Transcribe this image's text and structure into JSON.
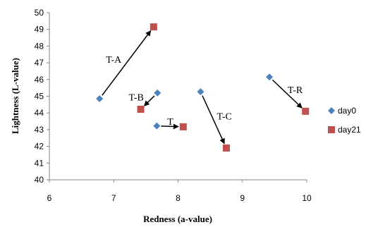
{
  "chart_data": {
    "type": "scatter",
    "xlabel": "Redness (a-value)",
    "ylabel": "Lightness (L-value)",
    "xlim": [
      6,
      10
    ],
    "ylim": [
      40,
      50
    ],
    "xticks": [
      6,
      7,
      8,
      9,
      10
    ],
    "yticks": [
      40,
      41,
      42,
      43,
      44,
      45,
      46,
      47,
      48,
      49,
      50
    ],
    "grid": false,
    "legend_position": "right",
    "series": [
      {
        "name": "day0",
        "marker": "diamond",
        "color": "#4f81bd",
        "points": [
          {
            "label": "T-A",
            "x": 6.78,
            "y": 44.85
          },
          {
            "label": "T-B",
            "x": 7.68,
            "y": 45.2
          },
          {
            "label": "T",
            "x": 7.67,
            "y": 43.22
          },
          {
            "label": "T-C",
            "x": 8.35,
            "y": 45.27
          },
          {
            "label": "T-R",
            "x": 9.42,
            "y": 46.15
          }
        ]
      },
      {
        "name": "day21",
        "marker": "square",
        "color": "#c0504d",
        "points": [
          {
            "label": "T-A",
            "x": 7.62,
            "y": 49.15
          },
          {
            "label": "T-B",
            "x": 7.42,
            "y": 44.22
          },
          {
            "label": "T",
            "x": 8.08,
            "y": 43.17
          },
          {
            "label": "T-C",
            "x": 8.75,
            "y": 41.9
          },
          {
            "label": "T-R",
            "x": 9.98,
            "y": 44.1
          }
        ]
      }
    ],
    "annotations": [
      {
        "text": "T-A",
        "x": 7.0,
        "y": 47.0
      },
      {
        "text": "T-B",
        "x": 7.35,
        "y": 44.75
      },
      {
        "text": "T",
        "x": 7.88,
        "y": 43.3
      },
      {
        "text": "T-C",
        "x": 8.72,
        "y": 43.6
      },
      {
        "text": "T-R",
        "x": 9.82,
        "y": 45.2
      }
    ]
  }
}
